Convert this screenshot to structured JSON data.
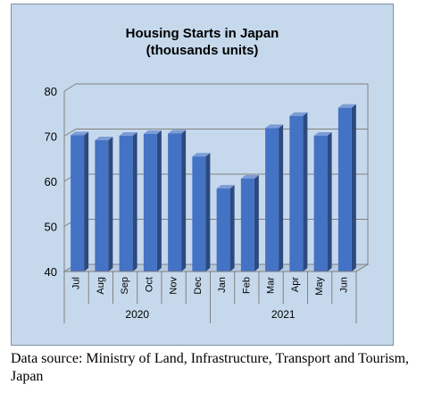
{
  "chart_data": {
    "type": "bar",
    "title": "Housing Starts in Japan",
    "subtitle": "(thousands units)",
    "categories": [
      "Jul",
      "Aug",
      "Sep",
      "Oct",
      "Nov",
      "Dec",
      "Jan",
      "Feb",
      "Mar",
      "Apr",
      "May",
      "Jun"
    ],
    "groups": [
      {
        "label": "2020",
        "count": 6
      },
      {
        "label": "2021",
        "count": 6
      }
    ],
    "values": [
      70.2,
      69.1,
      70.1,
      70.5,
      70.6,
      65.5,
      58.4,
      60.6,
      71.8,
      74.5,
      70.1,
      76.3
    ],
    "ylim": [
      40,
      80
    ],
    "yticks": [
      40,
      50,
      60,
      70,
      80
    ],
    "grid": true,
    "bar_color": "#4472c4"
  },
  "source": "Data source: Ministry of Land, Infrastructure, Transport and Tourism, Japan"
}
